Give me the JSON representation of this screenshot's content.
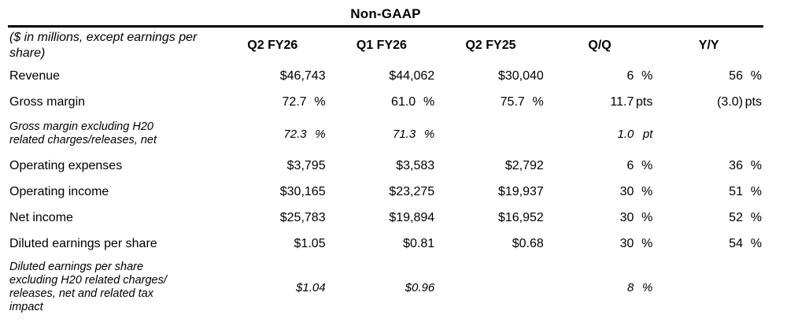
{
  "colors": {
    "background": "#ffffff",
    "text": "#000000",
    "rule": "#000000"
  },
  "table": {
    "title": "Non-GAAP",
    "header": {
      "label_note": "($ in millions, except earnings per\nshare)",
      "columns": [
        "Q2 FY26",
        "Q1 FY26",
        "Q2 FY25",
        "Q/Q",
        "Y/Y"
      ]
    },
    "rows": [
      {
        "label": "Revenue",
        "cells": [
          {
            "v": "$46,743"
          },
          {
            "v": "$44,062"
          },
          {
            "v": "$30,040"
          },
          {
            "v": "6",
            "u": "%"
          },
          {
            "v": "56",
            "u": "%"
          }
        ]
      },
      {
        "label": "Gross margin",
        "cells": [
          {
            "v": "72.7",
            "u": "%"
          },
          {
            "v": "61.0",
            "u": "%"
          },
          {
            "v": "75.7",
            "u": "%"
          },
          {
            "v": "11.7",
            "u": "pts"
          },
          {
            "v": "(3.0)",
            "u": "pts"
          }
        ]
      },
      {
        "label": "Gross margin excluding H20\nrelated charges/releases, net",
        "cells": [
          {
            "v": "72.3",
            "u": "%"
          },
          {
            "v": "71.3",
            "u": "%"
          },
          {},
          {
            "v": "1.0",
            "u": "pt"
          },
          {}
        ]
      },
      {
        "label": "Operating expenses",
        "cells": [
          {
            "v": "$3,795"
          },
          {
            "v": "$3,583"
          },
          {
            "v": "$2,792"
          },
          {
            "v": "6",
            "u": "%"
          },
          {
            "v": "36",
            "u": "%"
          }
        ]
      },
      {
        "label": "Operating income",
        "cells": [
          {
            "v": "$30,165"
          },
          {
            "v": "$23,275"
          },
          {
            "v": "$19,937"
          },
          {
            "v": "30",
            "u": "%"
          },
          {
            "v": "51",
            "u": "%"
          }
        ]
      },
      {
        "label": "Net income",
        "cells": [
          {
            "v": "$25,783"
          },
          {
            "v": "$19,894"
          },
          {
            "v": "$16,952"
          },
          {
            "v": "30",
            "u": "%"
          },
          {
            "v": "52",
            "u": "%"
          }
        ]
      },
      {
        "label": "Diluted earnings per share",
        "cells": [
          {
            "v": "$1.05"
          },
          {
            "v": "$0.81"
          },
          {
            "v": "$0.68"
          },
          {
            "v": "30",
            "u": "%"
          },
          {
            "v": "54",
            "u": "%"
          }
        ]
      },
      {
        "label": "Diluted earnings per share\nexcluding H20 related charges/\nreleases, net and related tax\nimpact",
        "cells": [
          {
            "v": "$1.04"
          },
          {
            "v": "$0.96"
          },
          {},
          {
            "v": "8",
            "u": "%"
          },
          {}
        ]
      }
    ]
  }
}
